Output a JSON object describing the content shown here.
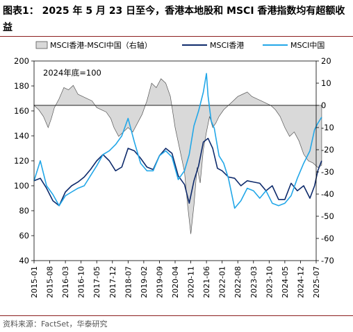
{
  "title": "图表1： 2025 年 5 月 23 日至今，香港本地股和 MSCI 香港指数均有超额收益",
  "source": "资料来源：FactSet，华泰研究",
  "colors": {
    "area": "#d9d9d9",
    "area_stroke": "#555555",
    "hk": "#0d2a6b",
    "china": "#22a7e8",
    "rule": "#8a1c1c"
  },
  "chart_data": {
    "type": "line",
    "annotation": "2024年底=100",
    "x_ticks": [
      "2015-01",
      "2015-08",
      "2016-03",
      "2016-10",
      "2017-05",
      "2017-12",
      "2018-07",
      "2019-02",
      "2019-09",
      "2020-04",
      "2020-11",
      "2021-06",
      "2022-01",
      "2022-08",
      "2023-03",
      "2023-10",
      "2024-05",
      "2024-12",
      "2025-07"
    ],
    "y_left": {
      "min": 40,
      "max": 200,
      "ticks": [
        40,
        60,
        80,
        100,
        120,
        140,
        160,
        180,
        200
      ]
    },
    "y_right": {
      "min": -70,
      "max": 20,
      "ticks": [
        -70,
        -60,
        -50,
        -40,
        -30,
        -20,
        -10,
        0,
        10,
        20
      ]
    },
    "series": [
      {
        "name": "MSCI香港-MSCI中国（右轴）",
        "axis": "right",
        "style": "area",
        "x": [
          0.0,
          0.3,
          0.6,
          0.9,
          1.1,
          1.3,
          1.6,
          1.9,
          2.2,
          2.5,
          2.8,
          3.1,
          3.4,
          3.7,
          4.0,
          4.3,
          4.6,
          4.9,
          5.1,
          5.4,
          5.7,
          6.0,
          6.3,
          6.6,
          6.9,
          7.2,
          7.5,
          7.8,
          8.1,
          8.4,
          8.7,
          9.0,
          9.3,
          9.6,
          9.8,
          10.0,
          10.2,
          10.4,
          10.6,
          10.8,
          11.0,
          11.2,
          11.4,
          11.6,
          11.8,
          12.1,
          12.4,
          12.7,
          13.0,
          13.3,
          13.6,
          13.9,
          14.2,
          14.5,
          14.8,
          15.1,
          15.4,
          15.7,
          16.0,
          16.3,
          16.6,
          16.9,
          17.2,
          17.5,
          17.8,
          18.1,
          18.35
        ],
        "values": [
          0,
          -2,
          -5,
          -10,
          -6,
          -1,
          3,
          8,
          7,
          9,
          5,
          4,
          3,
          2,
          -1,
          -2,
          -3,
          -6,
          -10,
          -14,
          -12,
          -10,
          -12,
          -8,
          -4,
          2,
          10,
          8,
          12,
          10,
          4,
          -10,
          -20,
          -30,
          -45,
          -58,
          -45,
          -28,
          -35,
          -20,
          -12,
          -5,
          -10,
          -8,
          -5,
          -2,
          0,
          2,
          4,
          5,
          6,
          4,
          3,
          2,
          1,
          0,
          -2,
          -5,
          -10,
          -14,
          -12,
          -16,
          -22,
          -25,
          -26,
          -28,
          -27
        ]
      },
      {
        "name": "MSCI香港",
        "axis": "left",
        "style": "line",
        "x": [
          0.0,
          0.4,
          0.8,
          1.2,
          1.6,
          2.0,
          2.4,
          2.8,
          3.2,
          3.6,
          4.0,
          4.4,
          4.8,
          5.2,
          5.6,
          6.0,
          6.4,
          6.8,
          7.2,
          7.6,
          8.0,
          8.4,
          8.8,
          9.2,
          9.6,
          9.9,
          10.2,
          10.5,
          10.8,
          11.1,
          11.4,
          11.7,
          12.0,
          12.4,
          12.8,
          13.2,
          13.6,
          14.0,
          14.4,
          14.8,
          15.2,
          15.6,
          16.0,
          16.4,
          16.8,
          17.2,
          17.6,
          17.9,
          18.1,
          18.35
        ],
        "values": [
          104,
          106,
          98,
          88,
          84,
          95,
          100,
          103,
          107,
          113,
          120,
          125,
          120,
          112,
          115,
          130,
          128,
          122,
          115,
          113,
          124,
          130,
          126,
          108,
          101,
          86,
          104,
          116,
          135,
          138,
          130,
          114,
          112,
          107,
          106,
          100,
          104,
          103,
          102,
          96,
          100,
          89,
          89,
          102,
          96,
          100,
          90,
          100,
          112,
          120
        ]
      },
      {
        "name": "MSCI中国",
        "axis": "left",
        "style": "line",
        "x": [
          0.0,
          0.4,
          0.8,
          1.2,
          1.6,
          2.0,
          2.4,
          2.8,
          3.2,
          3.6,
          4.0,
          4.4,
          4.8,
          5.2,
          5.6,
          6.0,
          6.4,
          6.8,
          7.2,
          7.6,
          8.0,
          8.4,
          8.8,
          9.2,
          9.6,
          9.9,
          10.2,
          10.5,
          10.8,
          11.0,
          11.1,
          11.3,
          11.5,
          11.8,
          12.1,
          12.4,
          12.8,
          13.2,
          13.6,
          14.0,
          14.4,
          14.8,
          15.2,
          15.6,
          16.0,
          16.4,
          16.8,
          17.2,
          17.6,
          17.9,
          18.1,
          18.35
        ],
        "values": [
          104,
          120,
          100,
          93,
          84,
          92,
          95,
          98,
          100,
          108,
          116,
          125,
          128,
          133,
          140,
          154,
          135,
          118,
          112,
          112,
          124,
          128,
          123,
          105,
          112,
          125,
          148,
          160,
          175,
          190,
          172,
          152,
          146,
          124,
          118,
          106,
          82,
          88,
          98,
          96,
          90,
          96,
          86,
          84,
          86,
          92,
          106,
          118,
          128,
          145,
          150,
          155
        ]
      }
    ]
  }
}
